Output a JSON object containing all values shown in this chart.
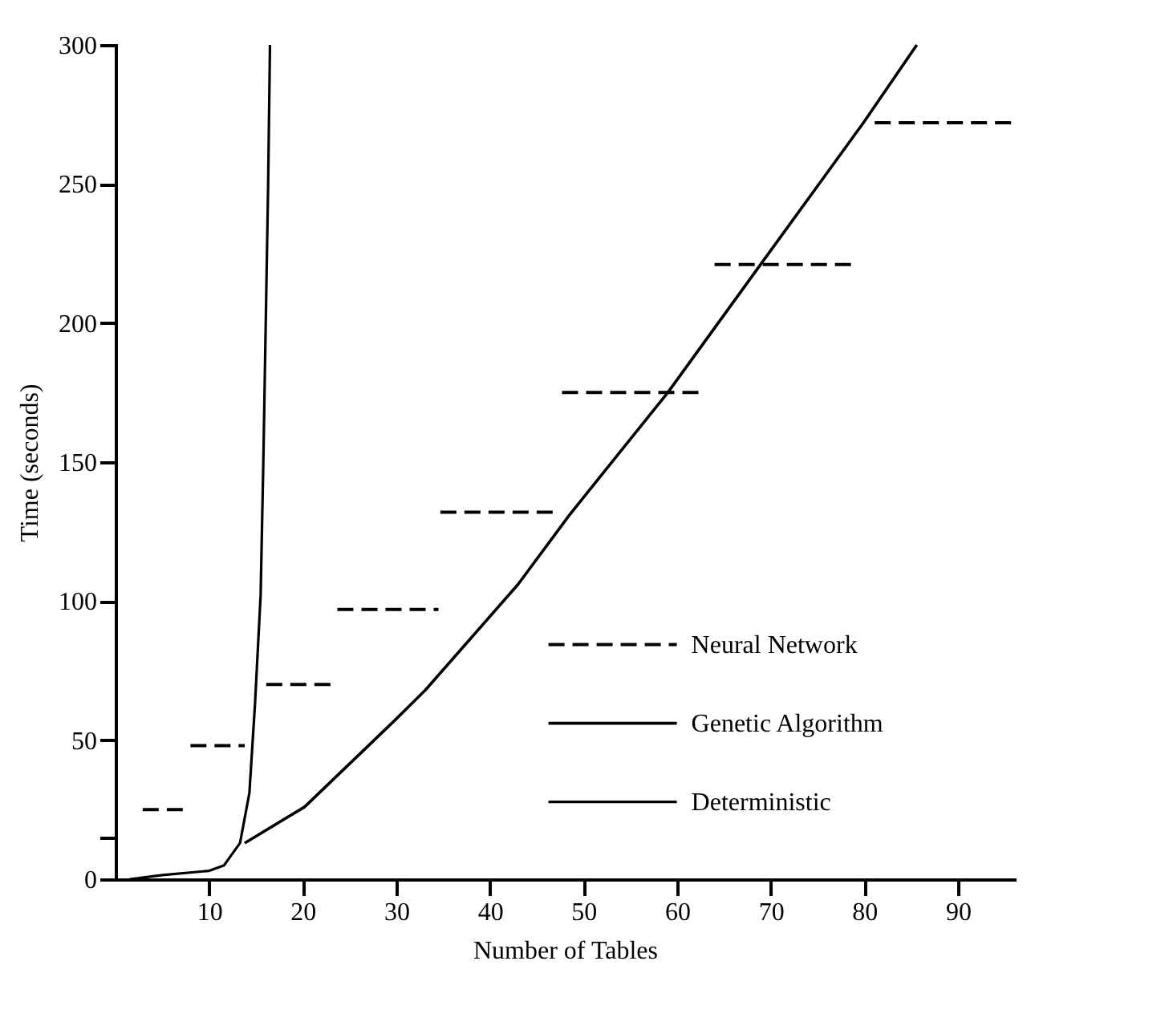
{
  "chart_data": {
    "type": "line",
    "xlabel": "Number of Tables",
    "ylabel": "Time (seconds)",
    "xlim": [
      0,
      96
    ],
    "ylim": [
      0,
      300
    ],
    "xticks": [
      10,
      20,
      30,
      40,
      50,
      60,
      70,
      80,
      90
    ],
    "yticks": [
      0,
      {
        "value": 15,
        "label": null
      },
      50,
      100,
      150,
      200,
      250,
      300
    ],
    "grid": false,
    "legend": "right",
    "marker": "none",
    "series": [
      {
        "name": "Neural Network",
        "color": "#000000",
        "line_style": "dashed",
        "x": [
          2.9,
          7.2,
          7.6,
          8.0,
          13.8,
          15,
          16.1,
          23.5,
          23.6,
          23.7,
          34.5,
          34.6,
          34.7,
          47.1,
          47.4,
          47.7,
          62.5,
          63.2,
          64.0,
          78.9,
          80,
          81.1,
          96
        ],
        "values": [
          25,
          25,
          null,
          48,
          48,
          null,
          70,
          70,
          null,
          97,
          97,
          null,
          132,
          132,
          null,
          175,
          175,
          null,
          221,
          221,
          null,
          272,
          272
        ]
      },
      {
        "name": "Genetic Algorithm",
        "color": "#000000",
        "line_style": "solid",
        "x": [
          13.8,
          20.2,
          29.8,
          33.1,
          43,
          48.5,
          59,
          68.9,
          79.9,
          85.6
        ],
        "values": [
          13,
          26,
          57,
          68,
          106,
          131,
          175,
          221,
          272,
          300
        ]
      },
      {
        "name": "Deterministic",
        "color": "#000000",
        "line_style": "solid",
        "x": [
          1.5,
          5,
          10,
          11.6,
          13.3,
          14.3,
          14.9,
          15.5,
          15.8,
          16.3,
          16.5
        ],
        "values": [
          0,
          1.5,
          3,
          5,
          13,
          31,
          63,
          102,
          152,
          249,
          300
        ]
      }
    ]
  }
}
